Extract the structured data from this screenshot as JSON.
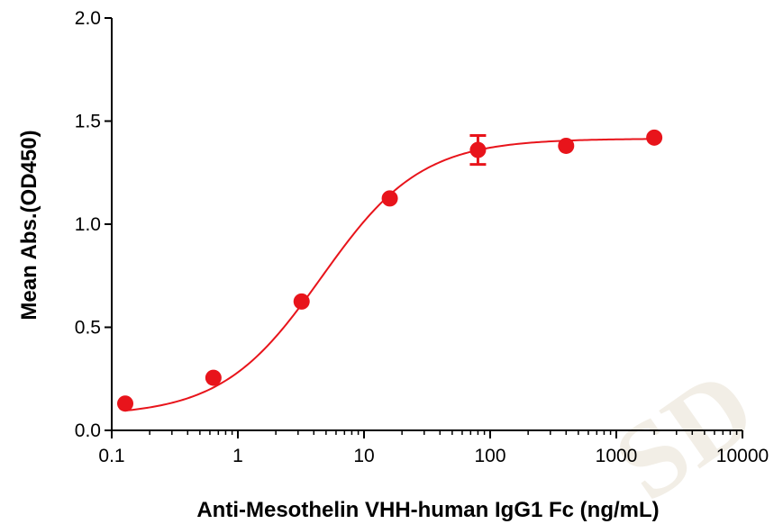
{
  "chart_data": {
    "type": "scatter",
    "title": "",
    "xlabel": "Anti-Mesothelin VHH-human IgG1 Fc (ng/mL)",
    "ylabel": "Mean Abs.(OD450)",
    "x_scale": "log",
    "xlim": [
      0.1,
      10000
    ],
    "ylim": [
      0.0,
      2.0
    ],
    "x_ticks": [
      0.1,
      1,
      10,
      100,
      1000,
      10000
    ],
    "x_tick_labels": [
      "0.1",
      "1",
      "10",
      "100",
      "1000",
      "10000"
    ],
    "y_ticks": [
      0.0,
      0.5,
      1.0,
      1.5,
      2.0
    ],
    "y_tick_labels": [
      "0.0",
      "0.5",
      "1.0",
      "1.5",
      "2.0"
    ],
    "grid": false,
    "legend": "none",
    "color": "#e8141b",
    "series": [
      {
        "x": [
          0.128,
          0.64,
          3.2,
          16,
          80,
          400,
          2000
        ],
        "y": [
          0.13,
          0.255,
          0.625,
          1.125,
          1.36,
          1.38,
          1.42
        ],
        "error": [
          0,
          0,
          0,
          0,
          0.07,
          0,
          0
        ]
      }
    ],
    "fit_curve": {
      "type": "4PL",
      "bottom": 0.07,
      "top": 1.415,
      "ec50": 4.6,
      "hill": 1.1
    }
  },
  "watermark": "SD"
}
